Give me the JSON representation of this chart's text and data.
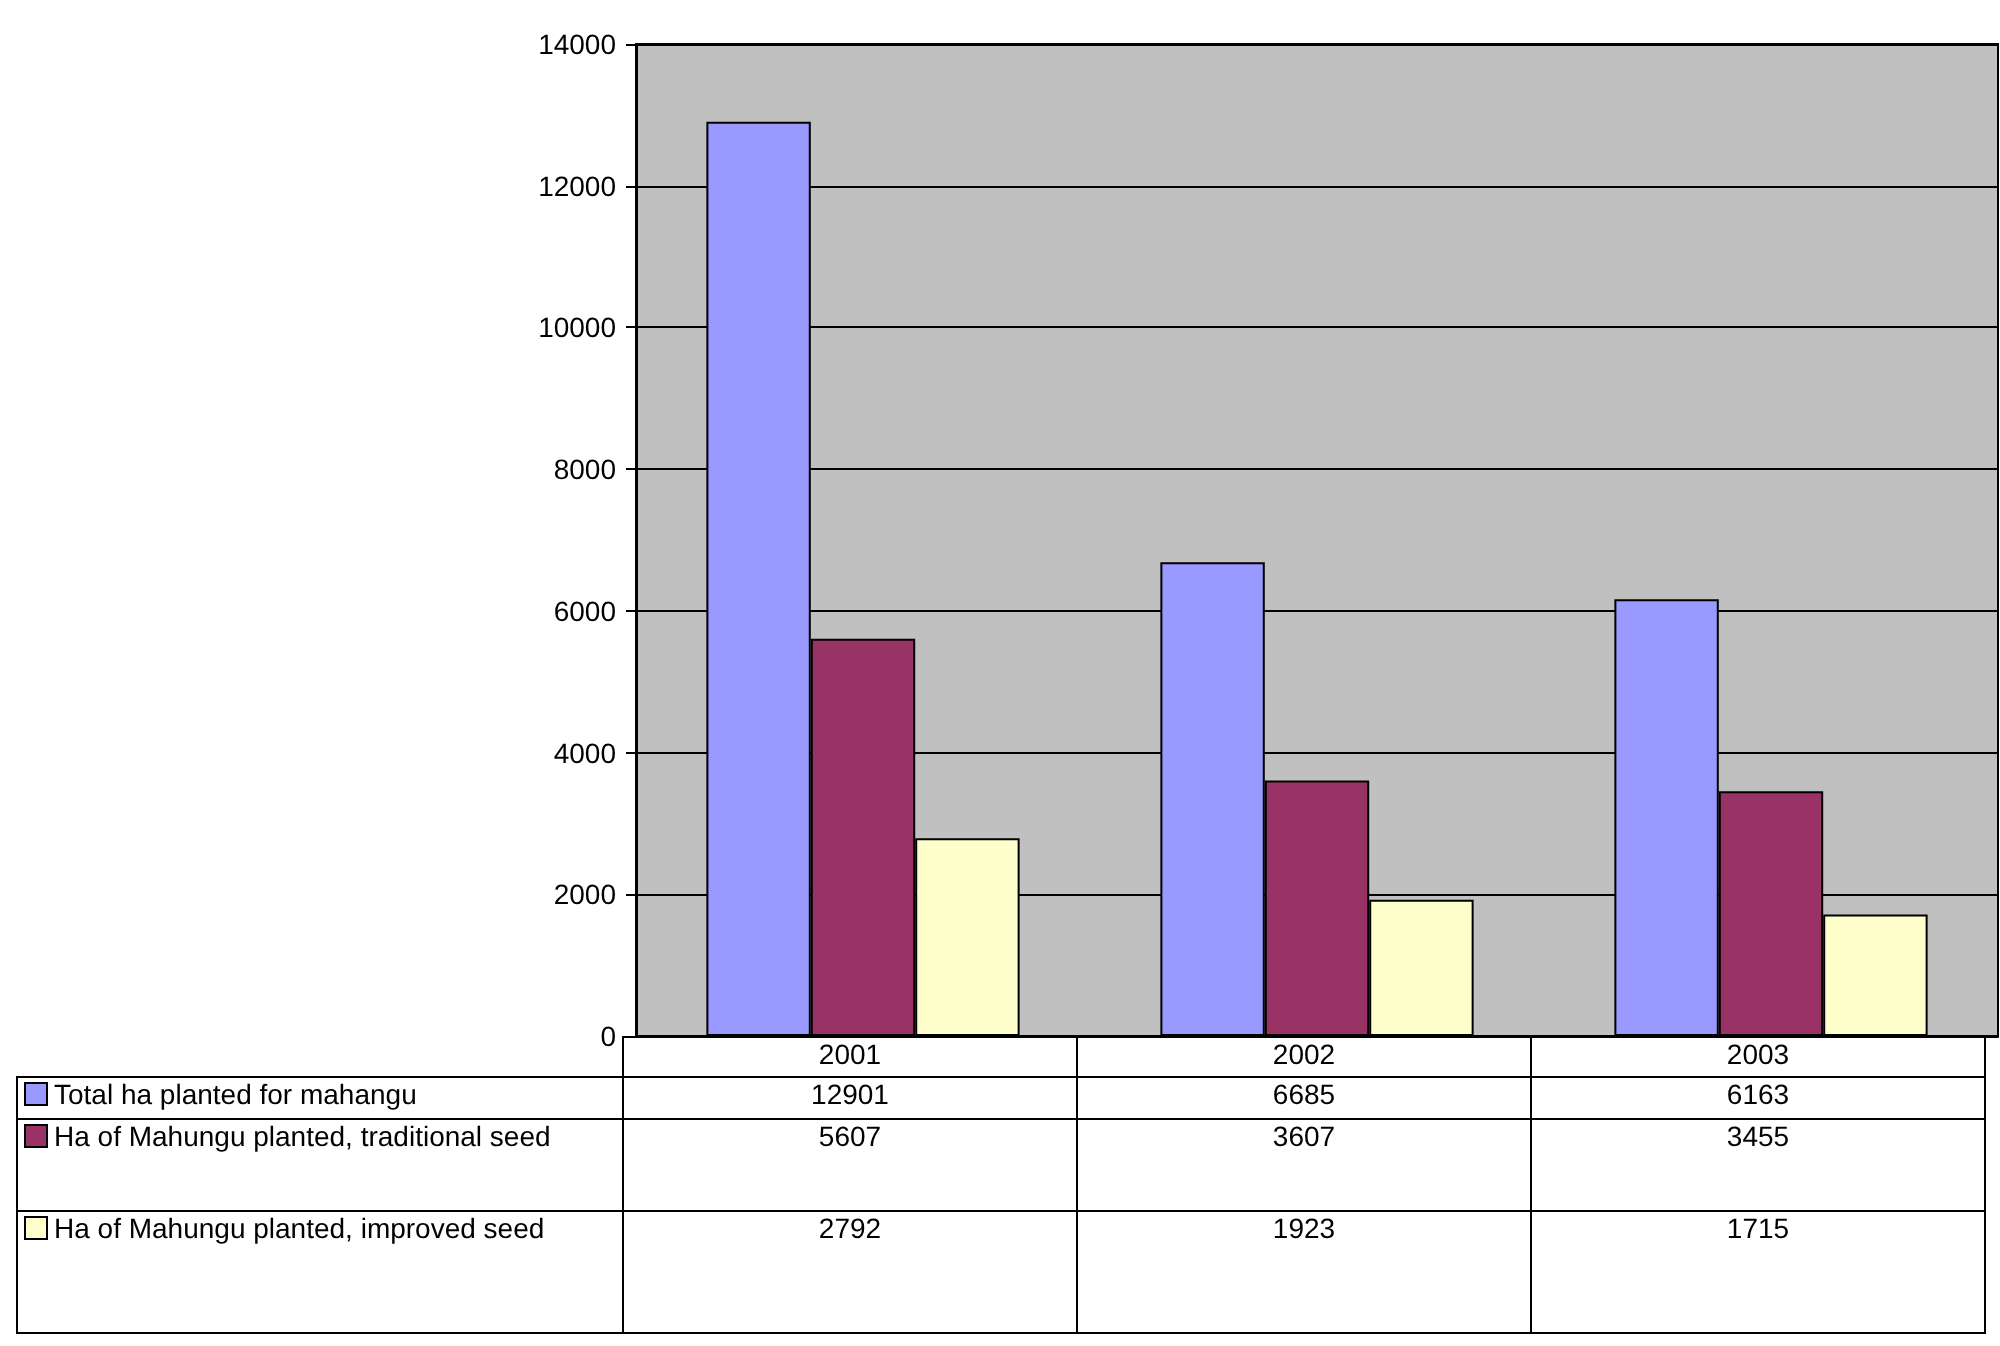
{
  "chart_data": {
    "type": "bar",
    "categories": [
      "2001",
      "2002",
      "2003"
    ],
    "series": [
      {
        "name": "Total ha planted for mahangu",
        "color": "#9999ff",
        "values": [
          12901,
          6685,
          6163
        ]
      },
      {
        "name": "Ha of Mahungu planted, traditional seed",
        "color": "#993366",
        "values": [
          5607,
          3607,
          3455
        ]
      },
      {
        "name": "Ha of Mahungu planted, improved seed",
        "color": "#ffffcc",
        "values": [
          2792,
          1923,
          1715
        ]
      }
    ],
    "ylim": [
      0,
      14000
    ],
    "yticks": [
      0,
      2000,
      4000,
      6000,
      8000,
      10000,
      12000,
      14000
    ],
    "grid": "y",
    "legend": "bottom left",
    "data_labels": true
  }
}
